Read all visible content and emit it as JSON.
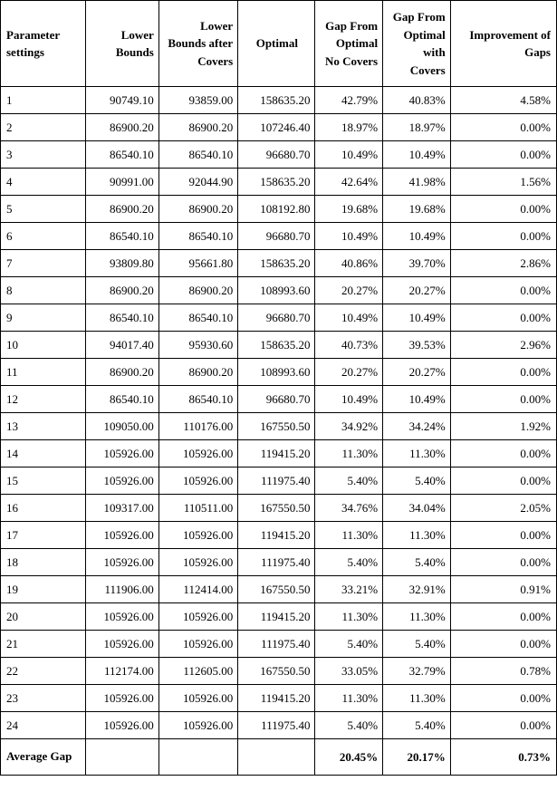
{
  "headers": {
    "param": "Parameter settings",
    "lower": "Lower Bounds",
    "lowerafter": "Lower Bounds after Covers",
    "optimal": "Optimal",
    "gap1": "Gap From Optimal No Covers",
    "gap2": "Gap From Optimal with Covers",
    "improve": "Improvement of Gaps"
  },
  "rows": [
    {
      "p": "1",
      "lb": "90749.10",
      "lba": "93859.00",
      "opt": "158635.20",
      "g1": "42.79%",
      "g2": "40.83%",
      "imp": "4.58%"
    },
    {
      "p": "2",
      "lb": "86900.20",
      "lba": "86900.20",
      "opt": "107246.40",
      "g1": "18.97%",
      "g2": "18.97%",
      "imp": "0.00%"
    },
    {
      "p": "3",
      "lb": "86540.10",
      "lba": "86540.10",
      "opt": "96680.70",
      "g1": "10.49%",
      "g2": "10.49%",
      "imp": "0.00%"
    },
    {
      "p": "4",
      "lb": "90991.00",
      "lba": "92044.90",
      "opt": "158635.20",
      "g1": "42.64%",
      "g2": "41.98%",
      "imp": "1.56%"
    },
    {
      "p": "5",
      "lb": "86900.20",
      "lba": "86900.20",
      "opt": "108192.80",
      "g1": "19.68%",
      "g2": "19.68%",
      "imp": "0.00%"
    },
    {
      "p": "6",
      "lb": "86540.10",
      "lba": "86540.10",
      "opt": "96680.70",
      "g1": "10.49%",
      "g2": "10.49%",
      "imp": "0.00%"
    },
    {
      "p": "7",
      "lb": "93809.80",
      "lba": "95661.80",
      "opt": "158635.20",
      "g1": "40.86%",
      "g2": "39.70%",
      "imp": "2.86%"
    },
    {
      "p": "8",
      "lb": "86900.20",
      "lba": "86900.20",
      "opt": "108993.60",
      "g1": "20.27%",
      "g2": "20.27%",
      "imp": "0.00%"
    },
    {
      "p": "9",
      "lb": "86540.10",
      "lba": "86540.10",
      "opt": "96680.70",
      "g1": "10.49%",
      "g2": "10.49%",
      "imp": "0.00%"
    },
    {
      "p": "10",
      "lb": "94017.40",
      "lba": "95930.60",
      "opt": "158635.20",
      "g1": "40.73%",
      "g2": "39.53%",
      "imp": "2.96%"
    },
    {
      "p": "11",
      "lb": "86900.20",
      "lba": "86900.20",
      "opt": "108993.60",
      "g1": "20.27%",
      "g2": "20.27%",
      "imp": "0.00%"
    },
    {
      "p": "12",
      "lb": "86540.10",
      "lba": "86540.10",
      "opt": "96680.70",
      "g1": "10.49%",
      "g2": "10.49%",
      "imp": "0.00%"
    },
    {
      "p": "13",
      "lb": "109050.00",
      "lba": "110176.00",
      "opt": "167550.50",
      "g1": "34.92%",
      "g2": "34.24%",
      "imp": "1.92%"
    },
    {
      "p": "14",
      "lb": "105926.00",
      "lba": "105926.00",
      "opt": "119415.20",
      "g1": "11.30%",
      "g2": "11.30%",
      "imp": "0.00%"
    },
    {
      "p": "15",
      "lb": "105926.00",
      "lba": "105926.00",
      "opt": "111975.40",
      "g1": "5.40%",
      "g2": "5.40%",
      "imp": "0.00%"
    },
    {
      "p": "16",
      "lb": "109317.00",
      "lba": "110511.00",
      "opt": "167550.50",
      "g1": "34.76%",
      "g2": "34.04%",
      "imp": "2.05%"
    },
    {
      "p": "17",
      "lb": "105926.00",
      "lba": "105926.00",
      "opt": "119415.20",
      "g1": "11.30%",
      "g2": "11.30%",
      "imp": "0.00%"
    },
    {
      "p": "18",
      "lb": "105926.00",
      "lba": "105926.00",
      "opt": "111975.40",
      "g1": "5.40%",
      "g2": "5.40%",
      "imp": "0.00%"
    },
    {
      "p": "19",
      "lb": "111906.00",
      "lba": "112414.00",
      "opt": "167550.50",
      "g1": "33.21%",
      "g2": "32.91%",
      "imp": "0.91%"
    },
    {
      "p": "20",
      "lb": "105926.00",
      "lba": "105926.00",
      "opt": "119415.20",
      "g1": "11.30%",
      "g2": "11.30%",
      "imp": "0.00%"
    },
    {
      "p": "21",
      "lb": "105926.00",
      "lba": "105926.00",
      "opt": "111975.40",
      "g1": "5.40%",
      "g2": "5.40%",
      "imp": "0.00%"
    },
    {
      "p": "22",
      "lb": "112174.00",
      "lba": "112605.00",
      "opt": "167550.50",
      "g1": "33.05%",
      "g2": "32.79%",
      "imp": "0.78%"
    },
    {
      "p": "23",
      "lb": "105926.00",
      "lba": "105926.00",
      "opt": "119415.20",
      "g1": "11.30%",
      "g2": "11.30%",
      "imp": "0.00%"
    },
    {
      "p": "24",
      "lb": "105926.00",
      "lba": "105926.00",
      "opt": "111975.40",
      "g1": "5.40%",
      "g2": "5.40%",
      "imp": "0.00%"
    }
  ],
  "average": {
    "label": "Average Gap",
    "g1": "20.45%",
    "g2": "20.17%",
    "imp": "0.73%"
  },
  "style": {
    "background_color": "#ffffff",
    "border_color": "#000000",
    "font_family": "Times New Roman",
    "header_fontsize": 13,
    "cell_fontsize": 13,
    "widths": {
      "param": 88,
      "lower": 76,
      "lowerafter": 82,
      "optimal": 80,
      "gap1": 70,
      "gap2": 70,
      "improve": 110
    }
  }
}
